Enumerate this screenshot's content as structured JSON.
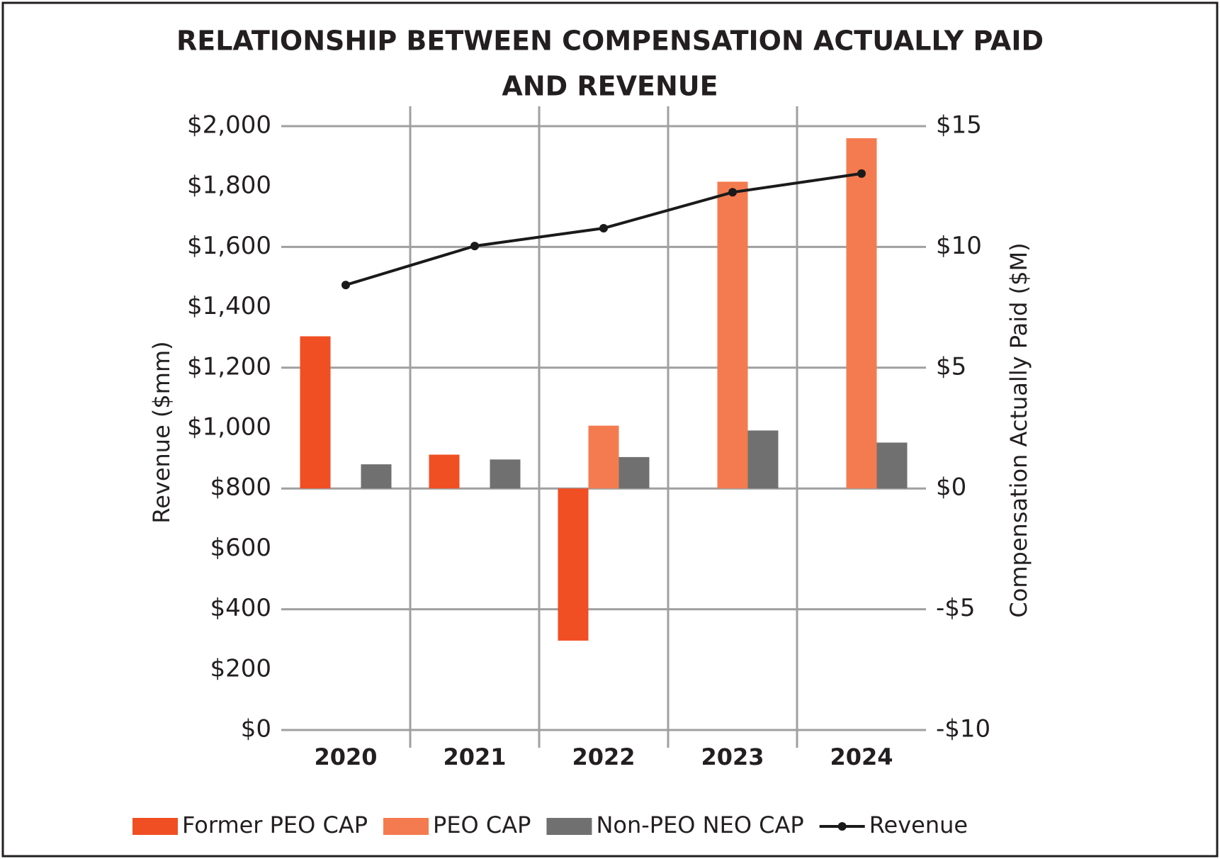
{
  "chart_data": {
    "type": "bar",
    "title_lines": [
      "RELATIONSHIP BETWEEN COMPENSATION ACTUALLY PAID",
      "AND REVENUE"
    ],
    "y_label": "Revenue ($mm)",
    "y2_label": "Compensation Actually Paid ($M)",
    "categories": [
      "2020",
      "2021",
      "2022",
      "2023",
      "2024"
    ],
    "ylim": [
      0,
      2000
    ],
    "yticks": [
      {
        "value": 0,
        "label": "$0"
      },
      {
        "value": 200,
        "label": "$200"
      },
      {
        "value": 400,
        "label": "$400"
      },
      {
        "value": 600,
        "label": "$600"
      },
      {
        "value": 800,
        "label": "$800"
      },
      {
        "value": 1000,
        "label": "$1,000"
      },
      {
        "value": 1200,
        "label": "$1,200"
      },
      {
        "value": 1400,
        "label": "$1,400"
      },
      {
        "value": 1600,
        "label": "$1,600"
      },
      {
        "value": 1800,
        "label": "$1,800"
      },
      {
        "value": 2000,
        "label": "$2,000"
      }
    ],
    "y2lim": [
      -10,
      15
    ],
    "y2ticks": [
      {
        "value": -10,
        "label": "-$10"
      },
      {
        "value": -5,
        "label": "-$5"
      },
      {
        "value": 0,
        "label": "$0"
      },
      {
        "value": 5,
        "label": "$5"
      },
      {
        "value": 10,
        "label": "$10"
      },
      {
        "value": 15,
        "label": "$15"
      }
    ],
    "series": [
      {
        "name": "Former PEO CAP",
        "type": "bar",
        "axis": "y2",
        "color": "#f04e23",
        "values": [
          6.3,
          1.4,
          -6.3,
          null,
          null
        ]
      },
      {
        "name": "PEO CAP",
        "type": "bar",
        "axis": "y2",
        "color": "#f37b4f",
        "values": [
          null,
          null,
          2.6,
          12.7,
          14.5
        ]
      },
      {
        "name": "Non-PEO NEO CAP",
        "type": "bar",
        "axis": "y2",
        "color": "#707070",
        "values": [
          1.0,
          1.2,
          1.3,
          2.4,
          1.9
        ]
      },
      {
        "name": "Revenue",
        "type": "line",
        "axis": "y",
        "color": "#1a1a1a",
        "values": [
          1474,
          1603,
          1662,
          1781,
          1843
        ]
      }
    ]
  }
}
